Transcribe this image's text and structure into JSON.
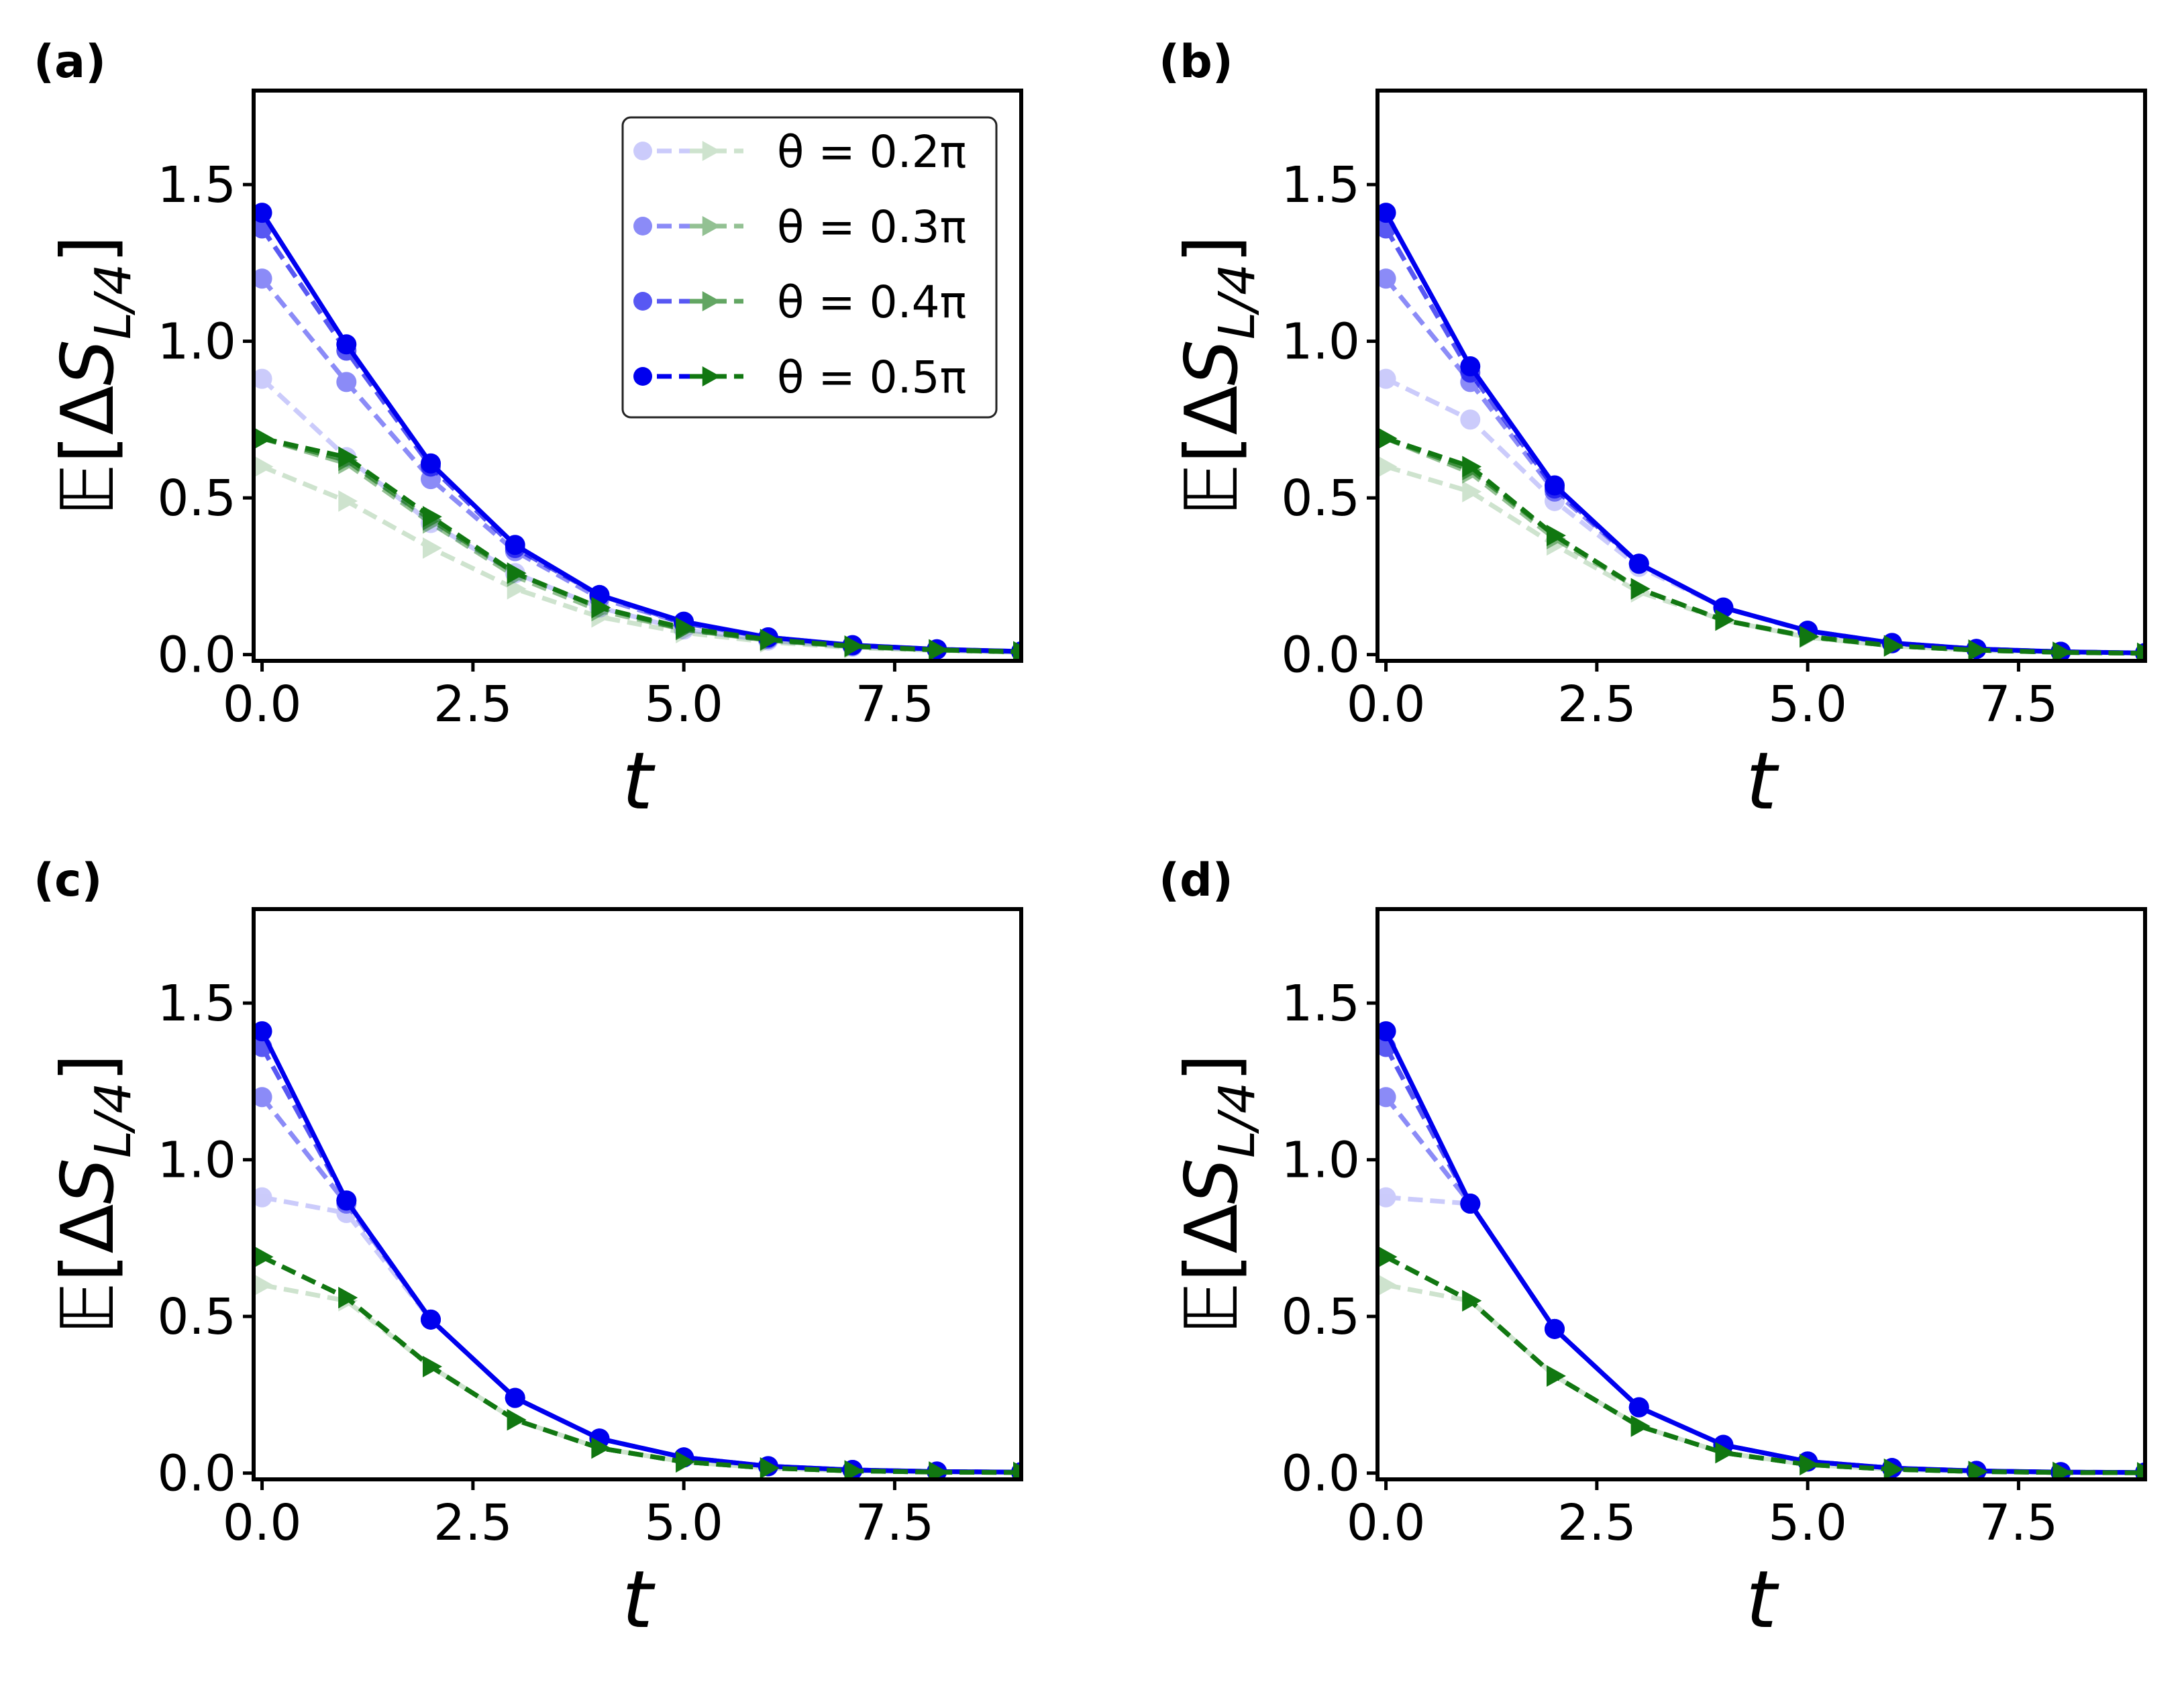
{
  "chart_data": [
    {
      "type": "line",
      "panel_label": "(a)",
      "xlabel": "t",
      "ylabel": "𝔼[ΔS_{L/4}]",
      "xlim": [
        -0.1,
        9.0
      ],
      "ylim": [
        -0.02,
        1.8
      ],
      "xticks": [
        "0.0",
        "2.5",
        "5.0",
        "7.5"
      ],
      "yticks": [
        "0.0",
        "0.5",
        "1.0",
        "1.5"
      ],
      "legend": true,
      "legend_position": "upper right",
      "legend_labels": [
        "θ = 0.2π",
        "θ = 0.3π",
        "θ = 0.4π",
        "θ = 0.5π"
      ],
      "x": [
        0,
        1,
        2,
        3,
        4,
        5,
        6,
        7,
        8,
        9
      ],
      "series": [
        {
          "kind": "blue-circle",
          "theta": 0.2,
          "values": [
            0.88,
            0.63,
            0.42,
            0.26,
            0.15,
            0.08,
            0.045,
            0.025,
            0.015,
            0.008
          ]
        },
        {
          "kind": "blue-circle",
          "theta": 0.3,
          "values": [
            1.2,
            0.87,
            0.56,
            0.33,
            0.18,
            0.1,
            0.05,
            0.028,
            0.016,
            0.009
          ]
        },
        {
          "kind": "blue-circle",
          "theta": 0.4,
          "values": [
            1.36,
            0.97,
            0.6,
            0.34,
            0.19,
            0.1,
            0.055,
            0.03,
            0.017,
            0.01
          ]
        },
        {
          "kind": "blue-circle",
          "theta": 0.5,
          "values": [
            1.41,
            0.99,
            0.61,
            0.35,
            0.19,
            0.105,
            0.055,
            0.03,
            0.017,
            0.01
          ]
        },
        {
          "kind": "green-triangle",
          "theta": 0.2,
          "values": [
            0.6,
            0.49,
            0.34,
            0.21,
            0.12,
            0.07,
            0.04,
            0.022,
            0.013,
            0.007
          ]
        },
        {
          "kind": "green-triangle",
          "theta": 0.3,
          "values": [
            0.69,
            0.61,
            0.42,
            0.25,
            0.14,
            0.08,
            0.045,
            0.025,
            0.014,
            0.008
          ]
        },
        {
          "kind": "green-triangle",
          "theta": 0.4,
          "values": [
            0.69,
            0.62,
            0.43,
            0.26,
            0.15,
            0.08,
            0.047,
            0.026,
            0.015,
            0.008
          ]
        },
        {
          "kind": "green-triangle",
          "theta": 0.5,
          "values": [
            0.69,
            0.63,
            0.44,
            0.26,
            0.15,
            0.085,
            0.048,
            0.027,
            0.015,
            0.009
          ]
        }
      ]
    },
    {
      "type": "line",
      "panel_label": "(b)",
      "xlabel": "t",
      "ylabel": "𝔼[ΔS_{L/4}]",
      "xlim": [
        -0.1,
        9.0
      ],
      "ylim": [
        -0.02,
        1.8
      ],
      "xticks": [
        "0.0",
        "2.5",
        "5.0",
        "7.5"
      ],
      "yticks": [
        "0.0",
        "0.5",
        "1.0",
        "1.5"
      ],
      "legend": false,
      "x": [
        0,
        1,
        2,
        3,
        4,
        5,
        6,
        7,
        8,
        9
      ],
      "series": [
        {
          "kind": "blue-circle",
          "theta": 0.2,
          "values": [
            0.88,
            0.75,
            0.49,
            0.28,
            0.15,
            0.075,
            0.035,
            0.018,
            0.009,
            0.005
          ]
        },
        {
          "kind": "blue-circle",
          "theta": 0.3,
          "values": [
            1.2,
            0.87,
            0.52,
            0.29,
            0.15,
            0.075,
            0.036,
            0.018,
            0.009,
            0.005
          ]
        },
        {
          "kind": "blue-circle",
          "theta": 0.4,
          "values": [
            1.36,
            0.9,
            0.53,
            0.29,
            0.15,
            0.076,
            0.037,
            0.018,
            0.009,
            0.005
          ]
        },
        {
          "kind": "blue-circle",
          "theta": 0.5,
          "values": [
            1.41,
            0.92,
            0.54,
            0.29,
            0.15,
            0.076,
            0.037,
            0.018,
            0.009,
            0.005
          ]
        },
        {
          "kind": "green-triangle",
          "theta": 0.2,
          "values": [
            0.6,
            0.52,
            0.35,
            0.2,
            0.11,
            0.055,
            0.027,
            0.014,
            0.007,
            0.004
          ]
        },
        {
          "kind": "green-triangle",
          "theta": 0.3,
          "values": [
            0.69,
            0.58,
            0.37,
            0.21,
            0.11,
            0.056,
            0.028,
            0.014,
            0.007,
            0.004
          ]
        },
        {
          "kind": "green-triangle",
          "theta": 0.4,
          "values": [
            0.69,
            0.59,
            0.38,
            0.21,
            0.11,
            0.057,
            0.028,
            0.014,
            0.007,
            0.004
          ]
        },
        {
          "kind": "green-triangle",
          "theta": 0.5,
          "values": [
            0.69,
            0.6,
            0.38,
            0.21,
            0.11,
            0.058,
            0.028,
            0.014,
            0.007,
            0.004
          ]
        }
      ]
    },
    {
      "type": "line",
      "panel_label": "(c)",
      "xlabel": "t",
      "ylabel": "𝔼[ΔS_{L/4}]",
      "xlim": [
        -0.1,
        9.0
      ],
      "ylim": [
        -0.02,
        1.8
      ],
      "xticks": [
        "0.0",
        "2.5",
        "5.0",
        "7.5"
      ],
      "yticks": [
        "0.0",
        "0.5",
        "1.0",
        "1.5"
      ],
      "legend": false,
      "x": [
        0,
        1,
        2,
        3,
        4,
        5,
        6,
        7,
        8,
        9
      ],
      "series": [
        {
          "kind": "blue-circle",
          "theta": 0.2,
          "values": [
            0.88,
            0.83,
            0.49,
            0.24,
            0.11,
            0.05,
            0.022,
            0.01,
            0.005,
            0.003
          ]
        },
        {
          "kind": "blue-circle",
          "theta": 0.3,
          "values": [
            1.2,
            0.86,
            0.49,
            0.24,
            0.11,
            0.05,
            0.022,
            0.01,
            0.005,
            0.003
          ]
        },
        {
          "kind": "blue-circle",
          "theta": 0.4,
          "values": [
            1.36,
            0.87,
            0.49,
            0.24,
            0.11,
            0.05,
            0.022,
            0.01,
            0.005,
            0.003
          ]
        },
        {
          "kind": "blue-circle",
          "theta": 0.5,
          "values": [
            1.41,
            0.87,
            0.49,
            0.24,
            0.11,
            0.05,
            0.022,
            0.01,
            0.005,
            0.003
          ]
        },
        {
          "kind": "green-triangle",
          "theta": 0.2,
          "values": [
            0.6,
            0.55,
            0.34,
            0.17,
            0.08,
            0.036,
            0.016,
            0.007,
            0.003,
            0.002
          ]
        },
        {
          "kind": "green-triangle",
          "theta": 0.3,
          "values": [
            0.69,
            0.56,
            0.34,
            0.17,
            0.08,
            0.036,
            0.016,
            0.007,
            0.003,
            0.002
          ]
        },
        {
          "kind": "green-triangle",
          "theta": 0.4,
          "values": [
            0.69,
            0.56,
            0.34,
            0.17,
            0.08,
            0.036,
            0.016,
            0.007,
            0.003,
            0.002
          ]
        },
        {
          "kind": "green-triangle",
          "theta": 0.5,
          "values": [
            0.69,
            0.56,
            0.34,
            0.17,
            0.08,
            0.036,
            0.016,
            0.007,
            0.003,
            0.002
          ]
        }
      ]
    },
    {
      "type": "line",
      "panel_label": "(d)",
      "xlabel": "t",
      "ylabel": "𝔼[ΔS_{L/4}]",
      "xlim": [
        -0.1,
        9.0
      ],
      "ylim": [
        -0.02,
        1.8
      ],
      "xticks": [
        "0.0",
        "2.5",
        "5.0",
        "7.5"
      ],
      "yticks": [
        "0.0",
        "0.5",
        "1.0",
        "1.5"
      ],
      "legend": false,
      "x": [
        0,
        1,
        2,
        3,
        4,
        5,
        6,
        7,
        8,
        9
      ],
      "series": [
        {
          "kind": "blue-circle",
          "theta": 0.2,
          "values": [
            0.88,
            0.86,
            0.46,
            0.21,
            0.09,
            0.037,
            0.016,
            0.007,
            0.003,
            0.002
          ]
        },
        {
          "kind": "blue-circle",
          "theta": 0.3,
          "values": [
            1.2,
            0.86,
            0.46,
            0.21,
            0.09,
            0.037,
            0.016,
            0.007,
            0.003,
            0.002
          ]
        },
        {
          "kind": "blue-circle",
          "theta": 0.4,
          "values": [
            1.36,
            0.86,
            0.46,
            0.21,
            0.09,
            0.037,
            0.016,
            0.007,
            0.003,
            0.002
          ]
        },
        {
          "kind": "blue-circle",
          "theta": 0.5,
          "values": [
            1.41,
            0.86,
            0.46,
            0.21,
            0.09,
            0.037,
            0.016,
            0.007,
            0.003,
            0.002
          ]
        },
        {
          "kind": "green-triangle",
          "theta": 0.2,
          "values": [
            0.6,
            0.55,
            0.31,
            0.15,
            0.065,
            0.027,
            0.012,
            0.005,
            0.002,
            0.001
          ]
        },
        {
          "kind": "green-triangle",
          "theta": 0.3,
          "values": [
            0.69,
            0.55,
            0.31,
            0.15,
            0.065,
            0.027,
            0.012,
            0.005,
            0.002,
            0.001
          ]
        },
        {
          "kind": "green-triangle",
          "theta": 0.4,
          "values": [
            0.69,
            0.55,
            0.31,
            0.15,
            0.065,
            0.027,
            0.012,
            0.005,
            0.002,
            0.001
          ]
        },
        {
          "kind": "green-triangle",
          "theta": 0.5,
          "values": [
            0.69,
            0.55,
            0.31,
            0.15,
            0.065,
            0.027,
            0.012,
            0.005,
            0.002,
            0.001
          ]
        }
      ]
    }
  ],
  "colors": {
    "blue": "#0000ee",
    "green": "#117711",
    "axis": "#000000"
  },
  "alpha_by_theta": {
    "0.2": 0.2,
    "0.3": 0.45,
    "0.4": 0.65,
    "0.5": 1.0
  }
}
